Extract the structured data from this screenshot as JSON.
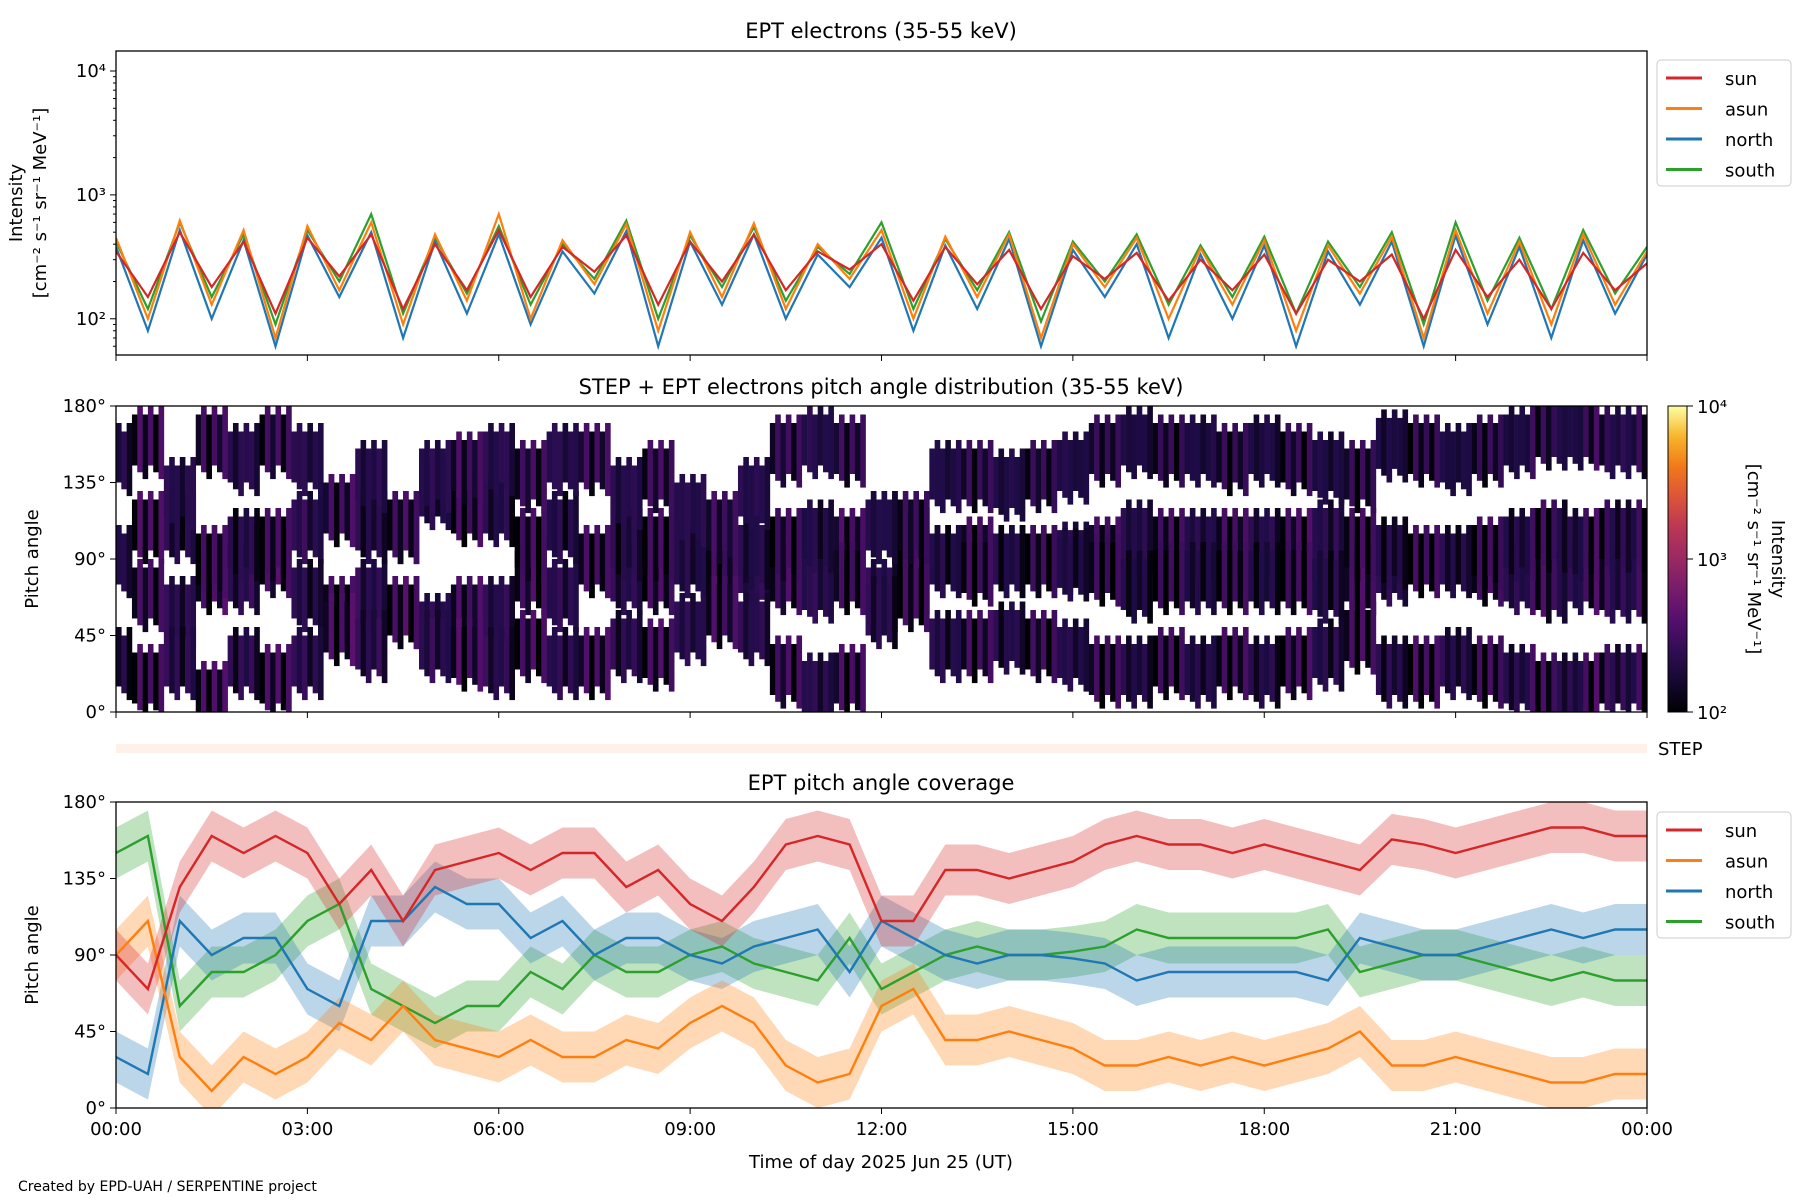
{
  "footer": "Created by EPD-UAH / SERPENTINE project",
  "colors": {
    "sun": "#d62728",
    "asun": "#ff7f0e",
    "north": "#1f77b4",
    "south": "#2ca02c",
    "step_strip": "#fdf1e9"
  },
  "chart_data": [
    {
      "type": "line",
      "title": "EPT electrons (35-55 keV)",
      "ylabel_line1": "Intensity",
      "ylabel_line2": "[cm⁻² s⁻¹ sr⁻¹ MeV⁻¹]",
      "yscale": "log",
      "ylim": [
        51,
        14500
      ],
      "yticks": [
        {
          "value": 100,
          "label": "10²"
        },
        {
          "value": 1000,
          "label": "10³"
        },
        {
          "value": 10000,
          "label": "10⁴"
        }
      ],
      "xlim_hours": [
        0,
        24
      ],
      "legend": {
        "placement": "outside-right-top",
        "entries": [
          "sun",
          "asun",
          "north",
          "south"
        ]
      },
      "x_hours_step": 0.5,
      "series": [
        {
          "name": "south",
          "values": [
            420,
            120,
            600,
            150,
            480,
            90,
            520,
            200,
            700,
            110,
            450,
            160,
            560,
            130,
            400,
            210,
            620,
            100,
            470,
            180,
            550,
            140,
            380,
            230,
            600,
            120,
            440,
            170,
            500,
            95,
            420,
            200,
            480,
            130,
            390,
            150,
            460,
            110,
            420,
            180,
            500,
            90,
            600,
            140,
            450,
            120,
            520,
            160,
            380
          ]
        },
        {
          "name": "north",
          "values": [
            380,
            80,
            520,
            100,
            430,
            60,
            470,
            150,
            500,
            70,
            420,
            110,
            480,
            90,
            350,
            160,
            510,
            60,
            420,
            130,
            480,
            100,
            330,
            180,
            450,
            80,
            390,
            120,
            440,
            60,
            360,
            150,
            400,
            70,
            330,
            100,
            390,
            60,
            350,
            130,
            420,
            60,
            470,
            90,
            380,
            70,
            430,
            110,
            330
          ]
        },
        {
          "name": "asun",
          "values": [
            450,
            100,
            620,
            130,
            520,
            70,
            560,
            170,
            600,
            90,
            480,
            140,
            700,
            100,
            430,
            190,
            580,
            80,
            500,
            150,
            590,
            120,
            400,
            210,
            520,
            100,
            460,
            150,
            480,
            70,
            400,
            180,
            450,
            100,
            370,
            130,
            430,
            80,
            390,
            160,
            460,
            70,
            520,
            110,
            420,
            90,
            480,
            130,
            350
          ]
        },
        {
          "name": "sun",
          "values": [
            350,
            150,
            500,
            180,
            420,
            110,
            450,
            220,
            480,
            120,
            400,
            170,
            520,
            150,
            380,
            240,
            470,
            130,
            420,
            200,
            480,
            170,
            350,
            250,
            400,
            140,
            380,
            190,
            360,
            120,
            320,
            210,
            340,
            140,
            300,
            170,
            330,
            110,
            300,
            200,
            330,
            100,
            360,
            150,
            300,
            120,
            340,
            170,
            280
          ]
        }
      ]
    },
    {
      "type": "heatmap",
      "title": "STEP + EPT electrons pitch angle distribution (35-55 keV)",
      "ylabel": "Pitch angle",
      "ylim": [
        0,
        180
      ],
      "yticks": [
        "0°",
        "45°",
        "90°",
        "135°",
        "180°"
      ],
      "colorbar": {
        "label_line1": "Intensity",
        "label_line2": "[cm⁻² s⁻¹ sr⁻¹ MeV⁻¹]",
        "scale": "log",
        "range": [
          100,
          10000
        ],
        "ticks": [
          {
            "value": 100,
            "label": "10²"
          },
          {
            "value": 1000,
            "label": "10³"
          },
          {
            "value": 10000,
            "label": "10⁴"
          }
        ],
        "colormap": "inferno"
      },
      "note": "pixels at each sector's pitch-angle coverage, colored by that sector's intensity"
    },
    {
      "type": "line",
      "strip_label": "STEP",
      "title": "EPT pitch angle coverage",
      "ylabel": "Pitch angle",
      "xlabel": "Time of day 2025 Jun 25 (UT)",
      "ylim": [
        0,
        180
      ],
      "yticks": [
        {
          "value": 0,
          "label": "0°"
        },
        {
          "value": 45,
          "label": "45°"
        },
        {
          "value": 90,
          "label": "90°"
        },
        {
          "value": 135,
          "label": "135°"
        },
        {
          "value": 180,
          "label": "180°"
        }
      ],
      "xticks": [
        {
          "value": 0,
          "label": "00:00"
        },
        {
          "value": 3,
          "label": "03:00"
        },
        {
          "value": 6,
          "label": "06:00"
        },
        {
          "value": 9,
          "label": "09:00"
        },
        {
          "value": 12,
          "label": "12:00"
        },
        {
          "value": 15,
          "label": "15:00"
        },
        {
          "value": 18,
          "label": "18:00"
        },
        {
          "value": 21,
          "label": "21:00"
        },
        {
          "value": 24,
          "label": "00:00"
        }
      ],
      "band_halfwidth_deg": 15,
      "legend": {
        "placement": "outside-right-top",
        "entries": [
          "sun",
          "asun",
          "north",
          "south"
        ]
      },
      "x_hours_step": 0.5,
      "series": [
        {
          "name": "south",
          "values": [
            150,
            160,
            60,
            80,
            80,
            90,
            110,
            120,
            70,
            60,
            50,
            60,
            60,
            80,
            70,
            90,
            80,
            80,
            90,
            95,
            85,
            80,
            75,
            100,
            70,
            80,
            90,
            95,
            90,
            90,
            92,
            95,
            105,
            100,
            100,
            100,
            100,
            100,
            105,
            80,
            85,
            90,
            90,
            85,
            80,
            75,
            80,
            75,
            75
          ]
        },
        {
          "name": "north",
          "values": [
            30,
            20,
            110,
            90,
            100,
            100,
            70,
            60,
            110,
            110,
            130,
            120,
            120,
            100,
            110,
            90,
            100,
            100,
            90,
            85,
            95,
            100,
            105,
            80,
            110,
            100,
            90,
            85,
            90,
            90,
            88,
            85,
            75,
            80,
            80,
            80,
            80,
            80,
            75,
            100,
            95,
            90,
            90,
            95,
            100,
            105,
            100,
            105,
            105
          ]
        },
        {
          "name": "asun",
          "values": [
            90,
            110,
            30,
            10,
            30,
            20,
            30,
            50,
            40,
            60,
            40,
            35,
            30,
            40,
            30,
            30,
            40,
            35,
            50,
            60,
            50,
            25,
            15,
            20,
            60,
            70,
            40,
            40,
            45,
            40,
            35,
            25,
            25,
            30,
            25,
            30,
            25,
            30,
            35,
            45,
            25,
            25,
            30,
            25,
            20,
            15,
            15,
            20,
            20
          ]
        },
        {
          "name": "sun",
          "values": [
            90,
            70,
            130,
            160,
            150,
            160,
            150,
            120,
            140,
            110,
            140,
            145,
            150,
            140,
            150,
            150,
            130,
            140,
            120,
            110,
            130,
            155,
            160,
            155,
            110,
            110,
            140,
            140,
            135,
            140,
            145,
            155,
            160,
            155,
            155,
            150,
            155,
            150,
            145,
            140,
            158,
            155,
            150,
            155,
            160,
            165,
            165,
            160,
            160
          ]
        }
      ]
    }
  ]
}
